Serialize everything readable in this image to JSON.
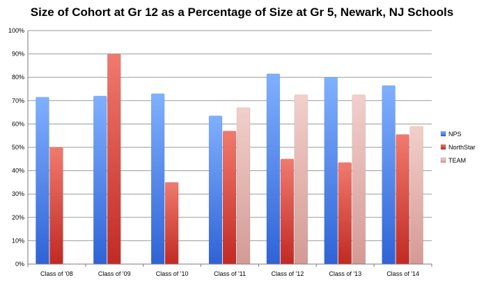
{
  "chart_data": {
    "type": "bar",
    "title": "Size of Cohort at Gr 12 as a Percentage of Size at Gr 5, Newark, NJ Schools",
    "xlabel": "",
    "ylabel": "",
    "ylim": [
      0,
      100
    ],
    "y_ticks": [
      "0%",
      "10%",
      "20%",
      "30%",
      "40%",
      "50%",
      "60%",
      "70%",
      "80%",
      "90%",
      "100%"
    ],
    "grid": true,
    "legend_position": "right",
    "categories": [
      "Class of '08",
      "Class of '09",
      "Class of '10",
      "Class of '11",
      "Class of '12",
      "Class of '13",
      "Class of '14"
    ],
    "series": [
      {
        "name": "NPS",
        "color": "#5b8ff0",
        "values": [
          71.5,
          72,
          73,
          63.5,
          81.5,
          80,
          76.5
        ]
      },
      {
        "name": "NorthStar",
        "color": "#d9443a",
        "values": [
          50,
          90,
          35,
          57,
          45,
          43.5,
          55.5
        ]
      },
      {
        "name": "TEAM",
        "color": "#e6b4b0",
        "values": [
          null,
          null,
          null,
          67,
          72.5,
          72.5,
          59
        ]
      }
    ]
  }
}
